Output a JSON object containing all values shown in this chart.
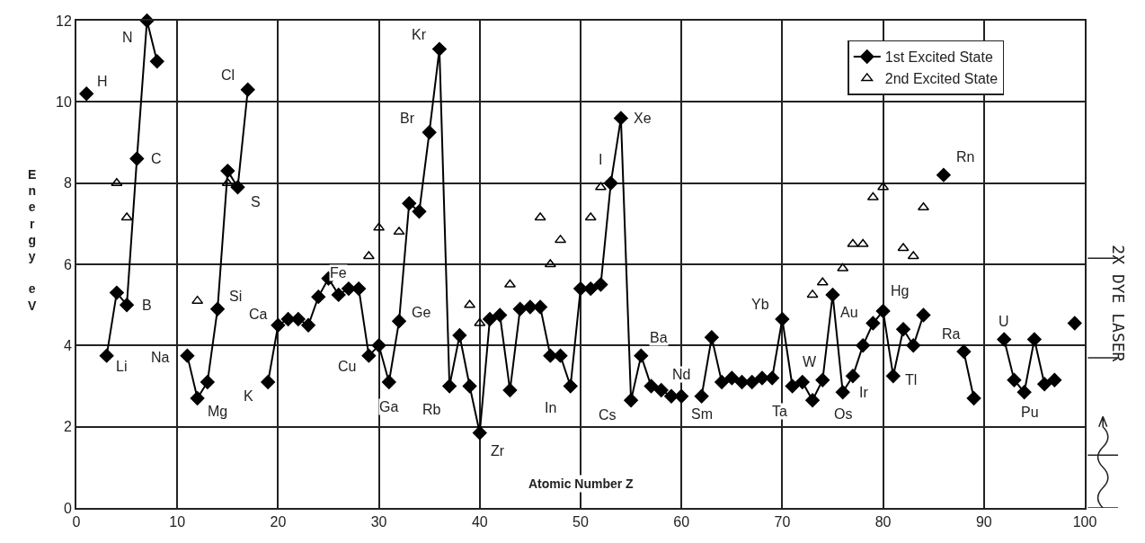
{
  "chart_data": {
    "type": "line",
    "xlabel": "Atomic Number Z",
    "ylabel": "Energy eV",
    "xlim": [
      0,
      100
    ],
    "xticks": [
      0,
      10,
      20,
      30,
      40,
      50,
      60,
      70,
      80,
      90,
      100
    ],
    "ylim": [
      0,
      12
    ],
    "yticks": [
      0,
      2,
      4,
      6,
      8,
      10,
      12
    ],
    "grid": true,
    "legend": "top right",
    "series": [
      {
        "name": "1st Excited State",
        "type": "line",
        "marker": "diamond",
        "color": "#000000",
        "x": [
          1,
          2,
          3,
          4,
          5,
          6,
          7,
          8,
          9,
          10,
          11,
          12,
          13,
          14,
          15,
          16,
          17,
          18,
          19,
          20,
          21,
          22,
          23,
          24,
          25,
          26,
          27,
          28,
          29,
          30,
          31,
          32,
          33,
          34,
          35,
          36,
          37,
          38,
          39,
          40,
          41,
          42,
          43,
          44,
          45,
          46,
          47,
          48,
          49,
          50,
          51,
          52,
          53,
          54,
          55,
          56,
          57,
          58,
          59,
          60,
          61,
          62,
          63,
          64,
          65,
          66,
          67,
          68,
          69,
          70,
          71,
          72,
          73,
          74,
          75,
          76,
          77,
          78,
          79,
          80,
          81,
          82,
          83,
          84,
          85,
          86,
          87,
          88,
          89,
          90,
          91,
          92,
          93,
          94,
          95,
          96,
          97,
          98,
          99
        ],
        "values": [
          10.2,
          null,
          3.75,
          5.3,
          5.0,
          8.6,
          12.0,
          11.0,
          null,
          null,
          3.75,
          2.7,
          3.1,
          4.9,
          8.3,
          7.9,
          10.3,
          null,
          3.1,
          4.5,
          4.65,
          4.65,
          4.5,
          5.2,
          5.65,
          5.25,
          5.4,
          5.4,
          3.75,
          4.0,
          3.1,
          4.6,
          7.5,
          7.3,
          9.25,
          11.3,
          3.0,
          4.25,
          3.0,
          1.85,
          4.65,
          4.75,
          2.9,
          4.9,
          4.95,
          4.95,
          3.75,
          3.75,
          3.0,
          5.4,
          5.4,
          5.5,
          8.0,
          9.6,
          2.65,
          3.75,
          3.0,
          2.9,
          2.75,
          2.75,
          null,
          2.75,
          4.2,
          3.1,
          3.2,
          3.1,
          3.1,
          3.2,
          3.2,
          4.65,
          3.0,
          3.1,
          2.65,
          3.15,
          5.25,
          2.85,
          3.25,
          4.0,
          4.55,
          4.85,
          3.25,
          4.4,
          4.0,
          4.75,
          null,
          8.2,
          null,
          3.85,
          2.7,
          null,
          null,
          4.15,
          3.15,
          2.85,
          4.15,
          3.05,
          3.15,
          null,
          4.55
        ]
      },
      {
        "name": "2nd Excited State",
        "type": "scatter",
        "marker": "triangle",
        "color": "#000000",
        "x": [
          4,
          5,
          12,
          15,
          29,
          30,
          32,
          39,
          40,
          43,
          46,
          47,
          48,
          51,
          52,
          73,
          74,
          76,
          77,
          78,
          79,
          80,
          82,
          83,
          84
        ],
        "values": [
          8.0,
          7.15,
          5.1,
          8.0,
          6.2,
          6.9,
          6.8,
          5.0,
          4.55,
          5.5,
          7.15,
          6.0,
          6.6,
          7.15,
          7.9,
          5.25,
          5.55,
          5.9,
          6.5,
          6.5,
          7.65,
          7.9,
          6.4,
          6.2,
          7.4
        ]
      }
    ],
    "annotations": [
      {
        "text": "H",
        "x": 1,
        "y": 10.2
      },
      {
        "text": "Li",
        "x": 3,
        "y": 3.75
      },
      {
        "text": "B",
        "x": 5,
        "y": 5.0
      },
      {
        "text": "C",
        "x": 6,
        "y": 8.6
      },
      {
        "text": "N",
        "x": 7,
        "y": 12.0
      },
      {
        "text": "Na",
        "x": 11,
        "y": 3.75
      },
      {
        "text": "Mg",
        "x": 12,
        "y": 2.7
      },
      {
        "text": "Si",
        "x": 14,
        "y": 4.9
      },
      {
        "text": "S",
        "x": 16,
        "y": 7.9
      },
      {
        "text": "Cl",
        "x": 17,
        "y": 10.3
      },
      {
        "text": "K",
        "x": 19,
        "y": 3.1
      },
      {
        "text": "Ca",
        "x": 20,
        "y": 4.5
      },
      {
        "text": "Fe",
        "x": 26,
        "y": 5.25
      },
      {
        "text": "Cu",
        "x": 29,
        "y": 3.75
      },
      {
        "text": "Ga",
        "x": 31,
        "y": 3.1
      },
      {
        "text": "Ge",
        "x": 32,
        "y": 4.6
      },
      {
        "text": "Br",
        "x": 35,
        "y": 9.25
      },
      {
        "text": "Kr",
        "x": 36,
        "y": 11.3
      },
      {
        "text": "Rb",
        "x": 37,
        "y": 3.0
      },
      {
        "text": "Zr",
        "x": 40,
        "y": 1.85
      },
      {
        "text": "In",
        "x": 49,
        "y": 3.0
      },
      {
        "text": "I",
        "x": 53,
        "y": 8.0
      },
      {
        "text": "Xe",
        "x": 54,
        "y": 9.6
      },
      {
        "text": "Cs",
        "x": 55,
        "y": 2.65
      },
      {
        "text": "Ba",
        "x": 56,
        "y": 3.75
      },
      {
        "text": "Nd",
        "x": 60,
        "y": 2.75
      },
      {
        "text": "Sm",
        "x": 62,
        "y": 2.75
      },
      {
        "text": "Yb",
        "x": 70,
        "y": 4.65
      },
      {
        "text": "Ta",
        "x": 71,
        "y": 3.0
      },
      {
        "text": "W",
        "x": 74,
        "y": 3.15
      },
      {
        "text": "Os",
        "x": 76,
        "y": 2.85
      },
      {
        "text": "Ir",
        "x": 77,
        "y": 3.25
      },
      {
        "text": "Au",
        "x": 79,
        "y": 4.55
      },
      {
        "text": "Hg",
        "x": 80,
        "y": 4.85
      },
      {
        "text": "Tl",
        "x": 81,
        "y": 3.25
      },
      {
        "text": "Rn",
        "x": 86,
        "y": 8.2
      },
      {
        "text": "Ra",
        "x": 88,
        "y": 3.85
      },
      {
        "text": "U",
        "x": 92,
        "y": 4.15
      },
      {
        "text": "Pu",
        "x": 94,
        "y": 2.85
      },
      "2X DYE LASER"
    ]
  }
}
